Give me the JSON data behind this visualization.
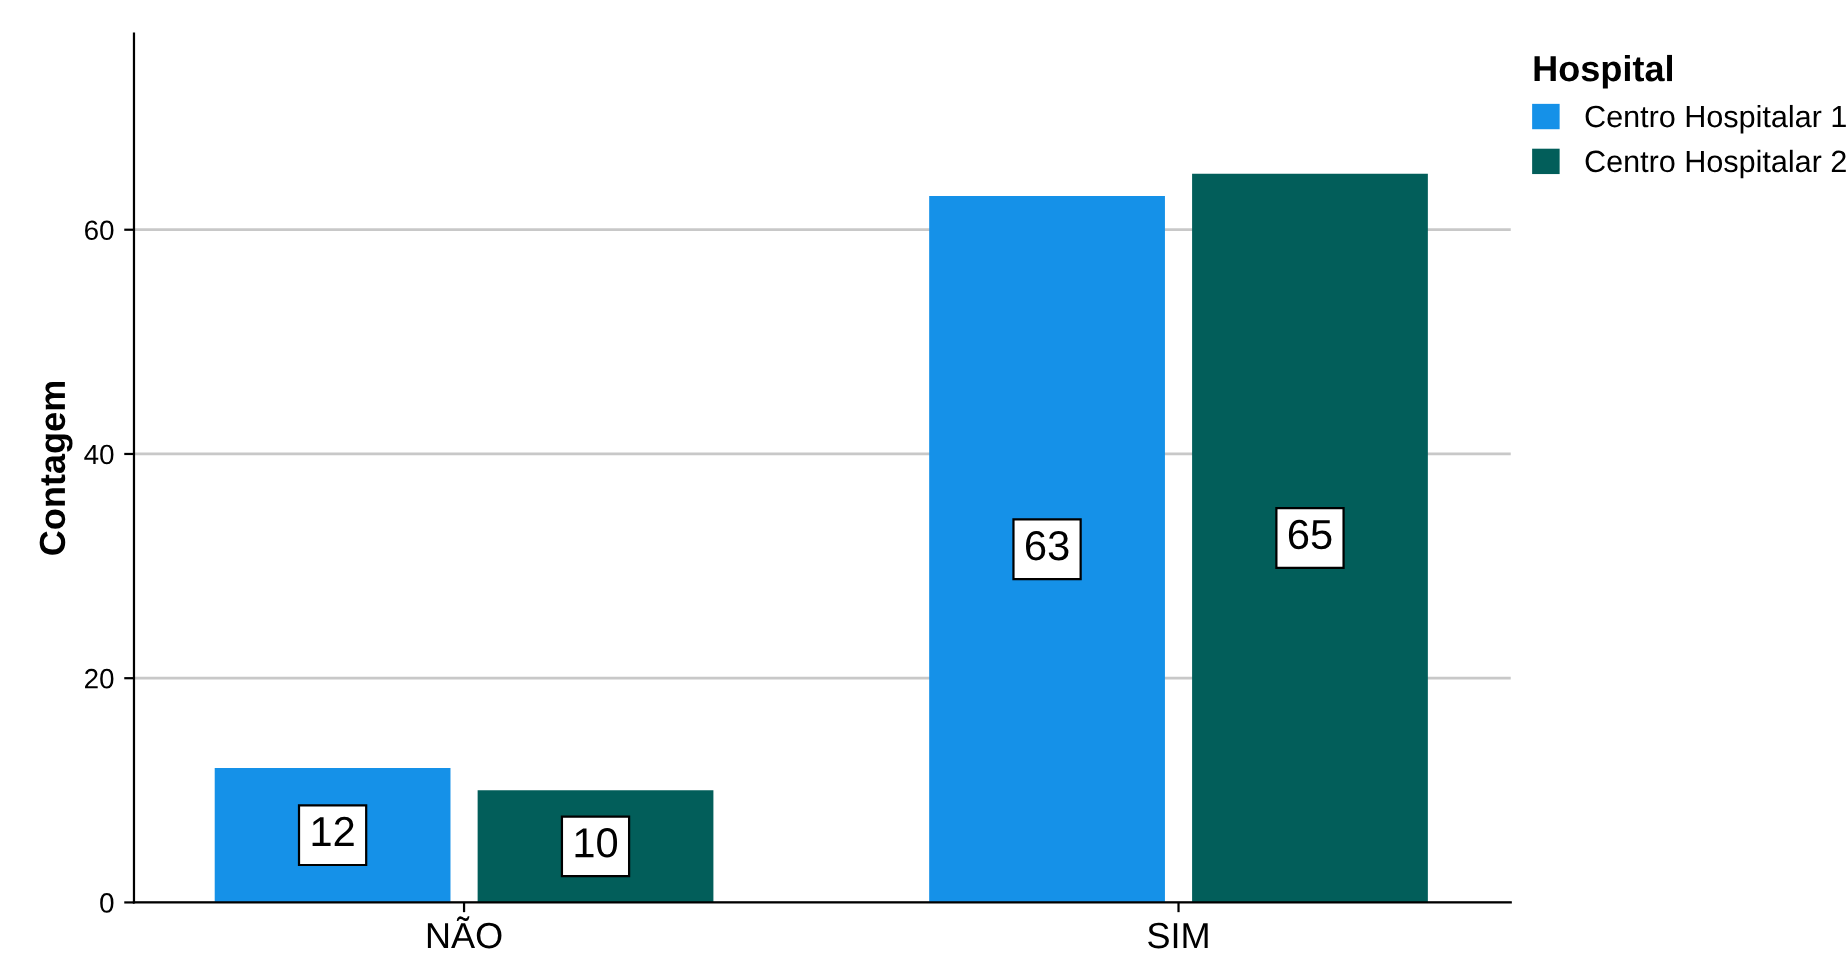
{
  "chart_data": {
    "type": "bar",
    "ylabel": "Contagem",
    "legend_title": "Hospital",
    "categories": [
      "NÃO",
      "SIM"
    ],
    "series": [
      {
        "name": "Centro Hospitalar 1",
        "color": "#1591e8",
        "values": [
          12,
          63
        ]
      },
      {
        "name": "Centro Hospitalar 2",
        "color": "#025e5a",
        "values": [
          10,
          65
        ]
      }
    ],
    "ylim": [
      0,
      77.5
    ],
    "yticks": [
      0,
      20,
      40,
      60
    ],
    "grid": "y",
    "legend": "top right",
    "data_labels": true
  }
}
